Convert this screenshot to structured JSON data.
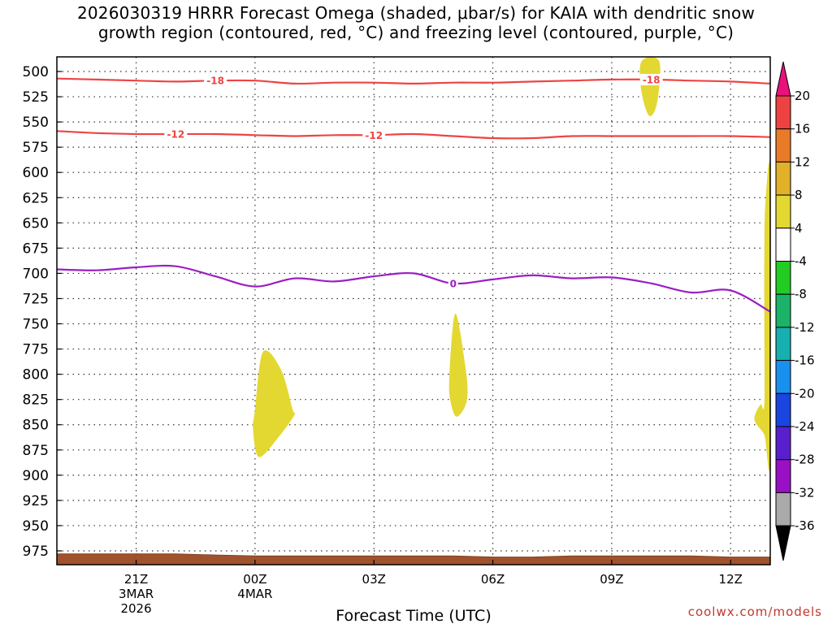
{
  "title": {
    "line1": "2026030319 HRRR Forecast Omega (shaded, μbar/s) for KAIA with dendritic snow",
    "line2": "growth region (contoured, red, °C) and freezing level (contoured, purple, °C)"
  },
  "credit": "coolwx.com/models",
  "chart_data": {
    "type": "time-height contour",
    "xlabel": "Forecast Time (UTC)",
    "ylabel": "",
    "x_ticks": [
      {
        "hour": 2,
        "label": "21Z",
        "sub": [
          "3MAR",
          "2026"
        ]
      },
      {
        "hour": 5,
        "label": "00Z",
        "sub": [
          "4MAR"
        ]
      },
      {
        "hour": 8,
        "label": "03Z",
        "sub": []
      },
      {
        "hour": 11,
        "label": "06Z",
        "sub": []
      },
      {
        "hour": 14,
        "label": "09Z",
        "sub": []
      },
      {
        "hour": 17,
        "label": "12Z",
        "sub": []
      }
    ],
    "xlim": [
      0,
      18
    ],
    "y_ticks": [
      500,
      525,
      550,
      575,
      600,
      625,
      650,
      675,
      700,
      725,
      750,
      775,
      800,
      825,
      850,
      875,
      900,
      925,
      950,
      975
    ],
    "ylim_hpa": [
      490,
      990
    ],
    "ground_hpa": [
      978,
      978,
      978,
      978,
      979,
      980,
      980,
      980,
      980,
      980,
      980,
      981,
      981,
      980,
      980,
      980,
      980,
      981,
      981
    ],
    "contours": [
      {
        "value": -18,
        "label": "-18",
        "color": "#ee4444",
        "hpa": [
          507,
          508,
          509,
          510,
          509,
          509,
          512,
          511,
          511,
          512,
          511,
          511,
          510,
          509,
          508,
          508,
          509,
          510,
          512
        ],
        "label_hours": [
          4,
          15
        ]
      },
      {
        "value": -12,
        "label": "-12",
        "color": "#ee4444",
        "hpa": [
          559,
          561,
          562,
          562,
          562,
          563,
          564,
          563,
          563,
          562,
          564,
          566,
          566,
          564,
          564,
          564,
          564,
          564,
          565
        ],
        "label_hours": [
          3,
          8
        ]
      },
      {
        "value": 0,
        "label": "0",
        "color": "#9a1fc4",
        "hpa": [
          696,
          697,
          694,
          693,
          703,
          713,
          705,
          708,
          703,
          700,
          710,
          706,
          702,
          705,
          704,
          710,
          719,
          717,
          738
        ],
        "label_hours": [
          10
        ]
      }
    ],
    "omega_regions": [
      {
        "color": "#e3d832",
        "points": [
          [
            5.0,
            835
          ],
          [
            5.2,
            778
          ],
          [
            5.65,
            795
          ],
          [
            5.95,
            835
          ],
          [
            6.0,
            840
          ],
          [
            5.6,
            862
          ],
          [
            5.1,
            882
          ],
          [
            4.95,
            855
          ]
        ]
      },
      {
        "color": "#e3d832",
        "points": [
          [
            9.9,
            805
          ],
          [
            10.05,
            740
          ],
          [
            10.3,
            790
          ],
          [
            10.35,
            825
          ],
          [
            10.1,
            842
          ],
          [
            9.95,
            830
          ]
        ]
      },
      {
        "color": "#e3d832",
        "points": [
          [
            14.75,
            490
          ],
          [
            15.2,
            490
          ],
          [
            15.15,
            530
          ],
          [
            14.95,
            544
          ],
          [
            14.75,
            520
          ]
        ]
      },
      {
        "color": "#e3d832",
        "points": [
          [
            17.85,
            830
          ],
          [
            17.85,
            760
          ],
          [
            17.85,
            680
          ],
          [
            17.88,
            630
          ],
          [
            18.0,
            605
          ],
          [
            18.0,
            880
          ],
          [
            17.85,
            860
          ],
          [
            17.6,
            845
          ],
          [
            17.75,
            830
          ]
        ]
      }
    ],
    "colorbar": {
      "labels": [
        "20",
        "16",
        "12",
        "8",
        "4",
        "-4",
        "-8",
        "-12",
        "-16",
        "-20",
        "-24",
        "-28",
        "-32",
        "-36"
      ],
      "colors": [
        "#ee4242",
        "#e87a28",
        "#e2b029",
        "#e3d832",
        "#ffffff",
        "#22cc22",
        "#1bb36a",
        "#16b0b0",
        "#1a90ee",
        "#1a45e0",
        "#5a1fcc",
        "#9a10c4",
        "#aaaaaa"
      ],
      "top_arrow_color": "#e8127a",
      "bottom_arrow_color": "#000000"
    }
  }
}
